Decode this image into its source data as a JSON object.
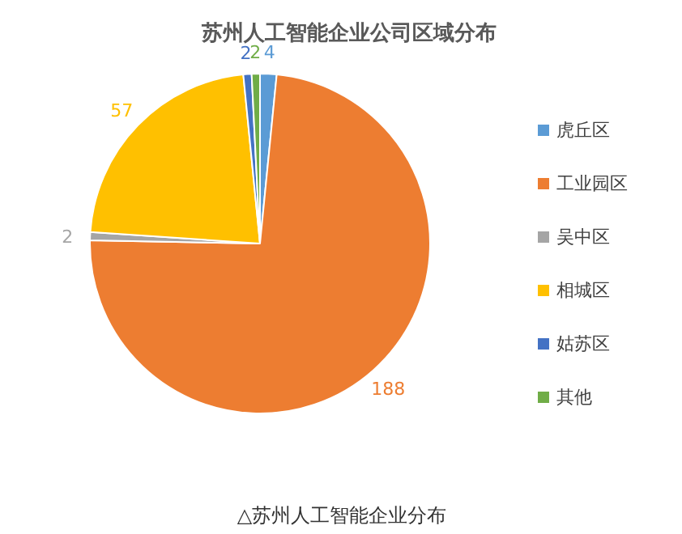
{
  "chart_data": {
    "type": "pie",
    "title": "苏州人工智能企业公司区域分布",
    "categories": [
      "虎丘区",
      "工业园区",
      "吴中区",
      "相城区",
      "姑苏区",
      "其他"
    ],
    "values": [
      4,
      188,
      2,
      57,
      2,
      2
    ],
    "colors": [
      "#5b9bd5",
      "#ed7d31",
      "#a5a5a5",
      "#ffc000",
      "#4472c4",
      "#70ad47"
    ],
    "data_labels": true,
    "legend": "right",
    "annotations": [
      "△苏州人工智能企业分布"
    ]
  }
}
